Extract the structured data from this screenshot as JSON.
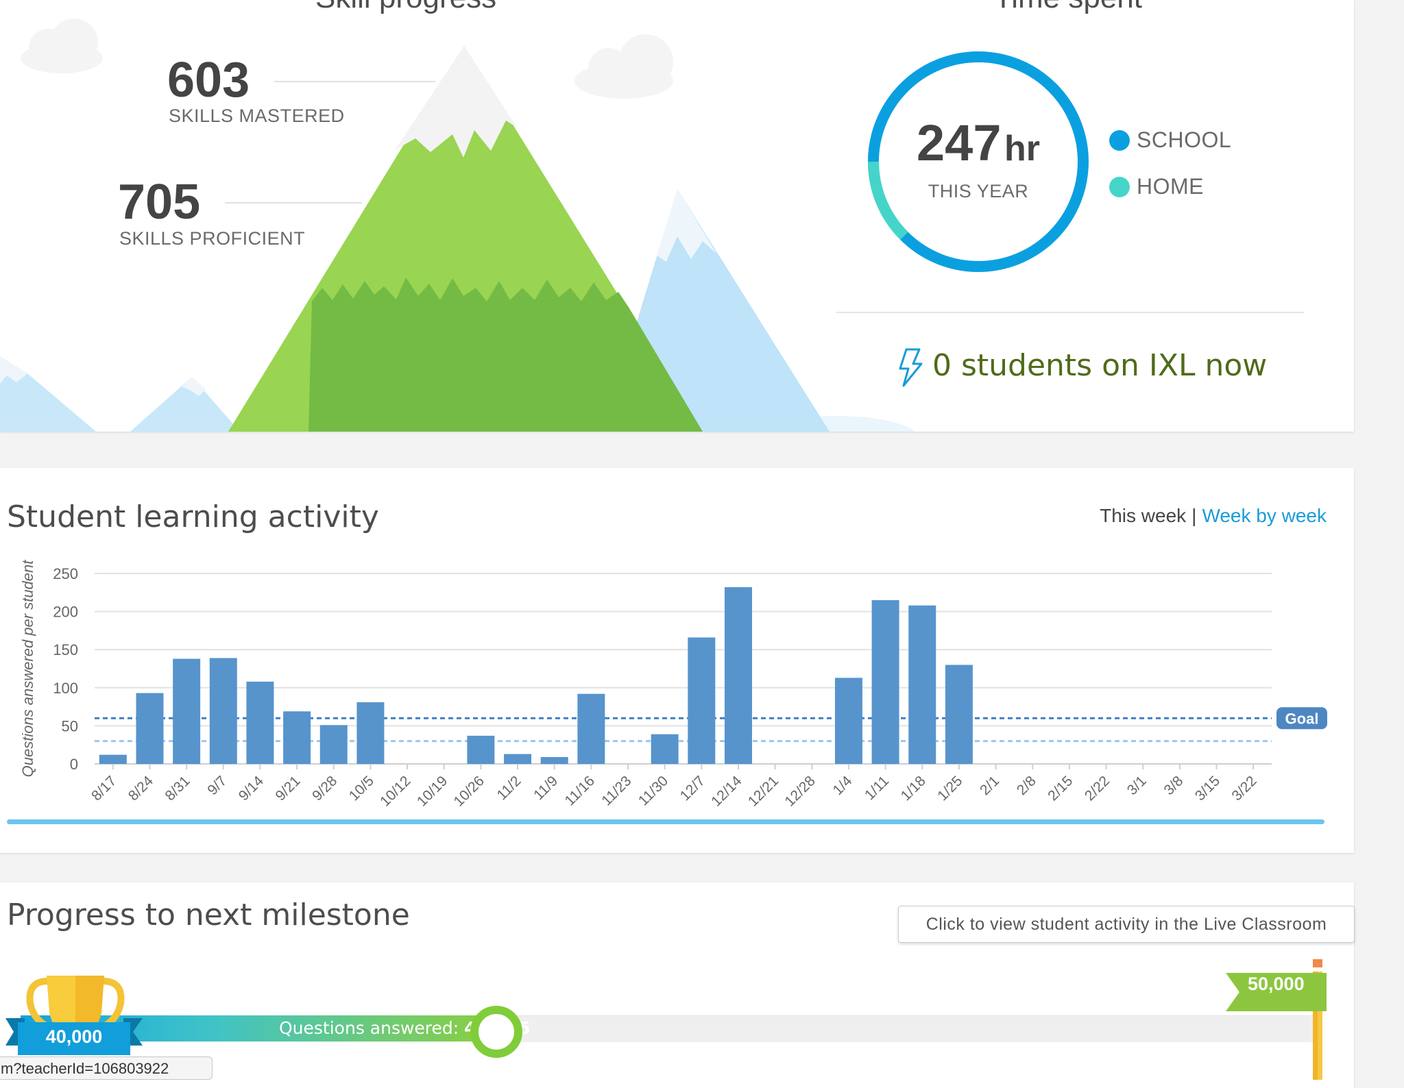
{
  "skill_progress": {
    "heading": "Skill progress",
    "mastered_value": "603",
    "mastered_label": "SKILLS MASTERED",
    "proficient_value": "705",
    "proficient_label": "SKILLS PROFICIENT"
  },
  "time_spent": {
    "heading": "Time spent",
    "hours_value": "247",
    "hours_unit": "hr",
    "period_label": "THIS YEAR",
    "legend": [
      {
        "label": "SCHOOL",
        "color": "#0aa0e0"
      },
      {
        "label": "HOME",
        "color": "#45d5c8"
      }
    ],
    "home_share": 0.125,
    "online_status": "0 students on IXL now"
  },
  "activity": {
    "heading": "Student learning activity",
    "toggle_active": "This week",
    "toggle_separator": "|",
    "toggle_link": "Week by week",
    "goal_label": "Goal"
  },
  "chart_data": {
    "type": "bar",
    "ylabel": "Questions answered per student",
    "ylim": [
      0,
      250
    ],
    "yticks": [
      0,
      50,
      100,
      150,
      200,
      250
    ],
    "categories": [
      "8/17",
      "8/24",
      "8/31",
      "9/7",
      "9/14",
      "9/21",
      "9/28",
      "10/5",
      "10/12",
      "10/19",
      "10/26",
      "11/2",
      "11/9",
      "11/16",
      "11/23",
      "11/30",
      "12/7",
      "12/14",
      "12/21",
      "12/28",
      "1/4",
      "1/11",
      "1/18",
      "1/25",
      "2/1",
      "2/8",
      "2/15",
      "2/22",
      "3/1",
      "3/8",
      "3/15",
      "3/22"
    ],
    "values": [
      12,
      93,
      138,
      139,
      108,
      69,
      51,
      81,
      0,
      0,
      37,
      13,
      9,
      92,
      0,
      39,
      166,
      232,
      0,
      0,
      113,
      215,
      208,
      130,
      0,
      0,
      0,
      0,
      0,
      0,
      0,
      0
    ],
    "goal": 60,
    "secondary_goal": 30,
    "bar_color": "#5794cc",
    "goal_color": "#3f7fc0",
    "secondary_goal_color": "#9cc6ec"
  },
  "milestone": {
    "heading": "Progress to next milestone",
    "live_classroom_button": "Click to view student activity in the Live Classroom",
    "start_label": "40,000",
    "end_label": "50,000",
    "progress_label": "Questions answered: ",
    "progress_value": "43,395",
    "start_value": 40000,
    "end_value": 50000,
    "current_value": 43395,
    "url_tooltip": "m?teacherId=106803922"
  }
}
